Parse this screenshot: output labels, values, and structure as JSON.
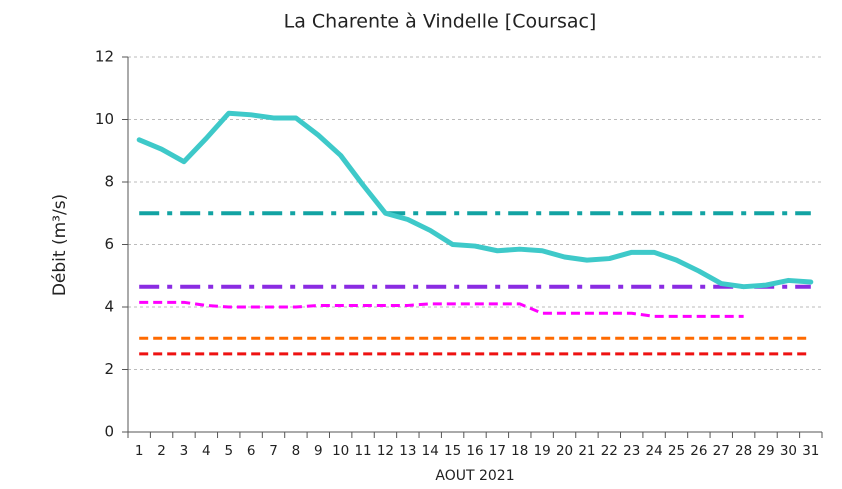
{
  "chart_data": {
    "type": "line",
    "title": "La Charente à Vindelle [Coursac]",
    "x_label": "AOUT 2021",
    "y_label": "Débit (m³/s)",
    "categories": [
      "1",
      "2",
      "3",
      "4",
      "5",
      "6",
      "7",
      "8",
      "9",
      "10",
      "11",
      "12",
      "13",
      "14",
      "15",
      "16",
      "17",
      "18",
      "19",
      "20",
      "21",
      "22",
      "23",
      "24",
      "25",
      "26",
      "27",
      "28",
      "29",
      "30",
      "31"
    ],
    "series": [
      {
        "color": "#3ec9c9",
        "style": "solid",
        "values": [
          9.35,
          9.05,
          8.65,
          9.4,
          10.2,
          10.15,
          10.05,
          10.05,
          9.5,
          8.85,
          7.9,
          7.0,
          6.8,
          6.45,
          6.0,
          5.95,
          5.8,
          5.85,
          5.8,
          5.6,
          5.5,
          5.55,
          5.75,
          5.75,
          5.5,
          5.15,
          4.75,
          4.65,
          4.7,
          4.85,
          4.8
        ]
      },
      {
        "color": "#ff00ff",
        "style": "dashed",
        "values": [
          4.15,
          4.15,
          4.15,
          4.05,
          4.0,
          4.0,
          4.0,
          4.0,
          4.05,
          4.05,
          4.05,
          4.05,
          4.05,
          4.1,
          4.1,
          4.1,
          4.1,
          4.1,
          3.8,
          3.8,
          3.8,
          3.8,
          3.8,
          3.7,
          3.7,
          3.7,
          3.7,
          3.7,
          null,
          null,
          null
        ]
      }
    ],
    "reference_lines": [
      {
        "value": 7.0,
        "color": "#12a3a3",
        "style": "dashdot"
      },
      {
        "value": 4.65,
        "color": "#8a2be2",
        "style": "dashdot"
      },
      {
        "value": 3.0,
        "color": "#ff6a00",
        "style": "dashed"
      },
      {
        "value": 2.5,
        "color": "#ee1111",
        "style": "dashed"
      }
    ],
    "ylim": [
      0,
      12
    ],
    "yticks": [
      0,
      2,
      4,
      6,
      8,
      10,
      12
    ],
    "grid": true
  }
}
